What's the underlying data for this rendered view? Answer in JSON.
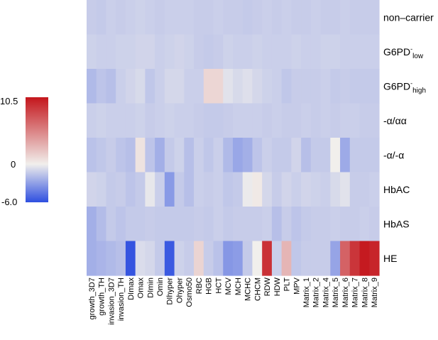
{
  "chart_data": {
    "type": "heatmap",
    "color_scale": {
      "min": -6.0,
      "mid": 0,
      "max": 10.5,
      "ticks": [
        "10.5",
        "0",
        "-6.0"
      ],
      "low_color": "#2E4FE0",
      "mid_color": "#F1EFEC",
      "high_color": "#C4161C"
    },
    "rows": [
      {
        "parts": [
          {
            "t": "non–carrier"
          }
        ]
      },
      {
        "parts": [
          {
            "t": "G6PD"
          },
          {
            "t": "-",
            "sup": true
          },
          {
            "t": "low",
            "sub": true
          }
        ]
      },
      {
        "parts": [
          {
            "t": "G6PD"
          },
          {
            "t": "-",
            "sup": true
          },
          {
            "t": "high",
            "sub": true
          }
        ]
      },
      {
        "parts": [
          {
            "t": "-α/αα"
          }
        ]
      },
      {
        "parts": [
          {
            "t": "-α/-α"
          }
        ]
      },
      {
        "parts": [
          {
            "t": "HbAC"
          }
        ]
      },
      {
        "parts": [
          {
            "t": "HbAS"
          }
        ]
      },
      {
        "parts": [
          {
            "t": "HE"
          }
        ]
      }
    ],
    "columns": [
      "growth_3D7",
      "growth_TH",
      "invasion_3D7",
      "invasion_TH",
      "DImax",
      "Omax",
      "DImin",
      "Omin",
      "DIhyper",
      "Ohyper",
      "Osmo50",
      "RBC",
      "HGB",
      "HCT",
      "MCV",
      "MCH",
      "MCHC",
      "CHCM",
      "RDW",
      "HDW",
      "PLT",
      "MPV",
      "Matrix_1",
      "Matrix_2",
      "Matrix_4",
      "Matrix_5",
      "Matrix_6",
      "Matrix_7",
      "Matrix_8",
      "Matrix_9"
    ],
    "values": [
      [
        -1.3,
        -1.4,
        -1.2,
        -1.3,
        -1.2,
        -1.1,
        -1.2,
        -1.3,
        -1.2,
        -1.2,
        -1.2,
        -1.3,
        -1.3,
        -1.2,
        -1.3,
        -1.3,
        -1.4,
        -1.3,
        -1.2,
        -1.3,
        -1.2,
        -1.3,
        -1.3,
        -1.2,
        -1.3,
        -1.3,
        -1.2,
        -1.3,
        -1.3,
        -1.3
      ],
      [
        -1.1,
        -1.2,
        -1.2,
        -1.1,
        -1.1,
        -1.0,
        -1.0,
        -1.2,
        -1.1,
        -1.0,
        -1.1,
        -1.3,
        -1.4,
        -1.3,
        -1.1,
        -1.2,
        -1.2,
        -1.1,
        -1.2,
        -1.2,
        -1.2,
        -1.1,
        -1.2,
        -1.2,
        -1.1,
        -1.1,
        -1.2,
        -1.2,
        -1.2,
        -1.2
      ],
      [
        -2.0,
        -1.6,
        -1.8,
        -1.2,
        -1.0,
        -0.8,
        -1.5,
        -1.2,
        -0.9,
        -0.9,
        -1.2,
        -1.2,
        1.2,
        1.2,
        -0.5,
        -0.8,
        -0.6,
        -0.9,
        -1.1,
        -1.2,
        -1.5,
        -1.3,
        -1.3,
        -1.3,
        -1.2,
        -1.4,
        -1.3,
        -1.4,
        -1.4,
        -1.4
      ],
      [
        -1.2,
        -1.1,
        -1.2,
        -1.2,
        -1.2,
        -1.1,
        -1.3,
        -1.2,
        -1.1,
        -1.2,
        -1.2,
        -1.3,
        -1.4,
        -1.4,
        -1.3,
        -1.2,
        -1.2,
        -1.2,
        -1.3,
        -1.2,
        -1.3,
        -1.3,
        -1.2,
        -1.3,
        -1.2,
        -1.3,
        -1.2,
        -1.2,
        -1.3,
        -1.3
      ],
      [
        -1.7,
        -1.5,
        -1.3,
        -1.6,
        -1.8,
        0.6,
        -1.6,
        -2.4,
        -1.4,
        -1.1,
        -1.8,
        -1.2,
        -1.5,
        -1.2,
        -2.0,
        -2.7,
        -2.4,
        -1.6,
        -1.2,
        -1.4,
        -1.4,
        -1.0,
        -1.8,
        -1.4,
        -1.4,
        0.0,
        -2.6,
        -1.4,
        -1.4,
        -1.4
      ],
      [
        -1.0,
        -1.1,
        -1.4,
        -1.3,
        -1.6,
        -1.4,
        -0.3,
        -1.2,
        -3.2,
        -1.4,
        -1.8,
        -1.2,
        -1.3,
        -1.2,
        -1.5,
        -1.4,
        -0.2,
        0.3,
        -0.9,
        -1.3,
        -1.0,
        -1.2,
        -1.0,
        -1.1,
        -1.2,
        -0.8,
        -0.5,
        -1.3,
        -1.3,
        -1.2
      ],
      [
        -2.4,
        -1.9,
        -1.4,
        -1.6,
        -1.4,
        -1.4,
        -1.3,
        -1.4,
        -1.4,
        -1.4,
        -1.4,
        -1.3,
        -1.4,
        -1.2,
        -1.4,
        -1.3,
        -1.3,
        -1.3,
        -1.2,
        -1.8,
        -1.3,
        -1.6,
        -1.4,
        -1.3,
        -1.3,
        -1.2,
        -1.3,
        -1.3,
        -1.2,
        -1.3
      ],
      [
        -2.4,
        -2.2,
        -2.0,
        -1.8,
        -5.8,
        -0.7,
        -0.9,
        -1.4,
        -5.6,
        -1.1,
        -1.3,
        1.3,
        -1.3,
        -1.7,
        -3.3,
        -3.1,
        -1.4,
        0.0,
        9.2,
        -1.2,
        2.8,
        -1.5,
        -1.3,
        -1.3,
        -1.3,
        -2.8,
        6.8,
        9.0,
        10.3,
        9.8
      ]
    ]
  }
}
